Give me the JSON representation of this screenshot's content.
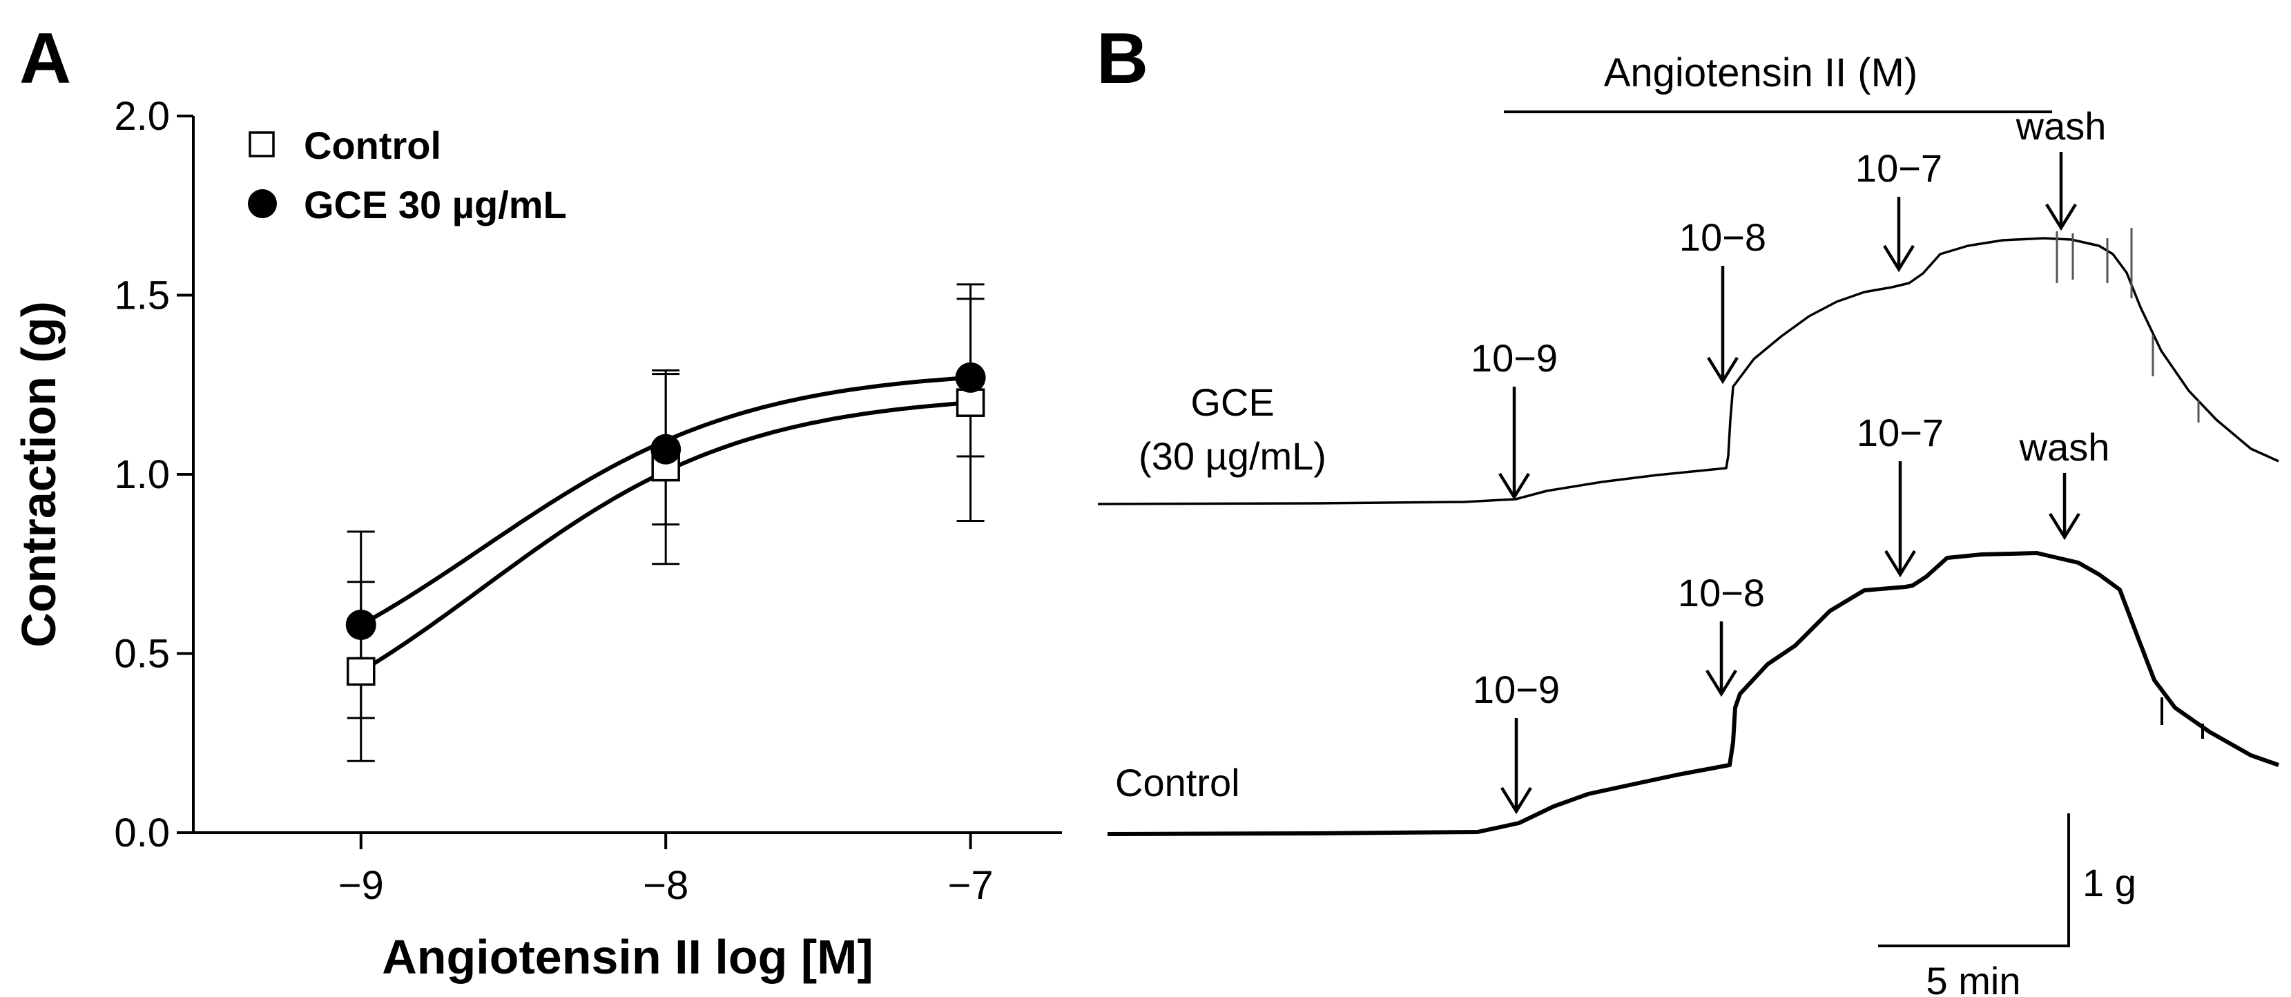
{
  "panels": {
    "a_label": "A",
    "b_label": "B"
  },
  "chart_data": [
    {
      "type": "scatter",
      "panel": "A",
      "xlabel": "Angiotensin II log [M]",
      "ylabel": "Contraction (g)",
      "xlim": [
        -9.55,
        -6.7
      ],
      "ylim": [
        0.0,
        2.0
      ],
      "xticks": [
        -9,
        -8,
        -7
      ],
      "xtick_labels": [
        "−9",
        "−8",
        "−7"
      ],
      "yticks": [
        0.0,
        0.5,
        1.0,
        1.5,
        2.0
      ],
      "ytick_labels": [
        "0.0",
        "0.5",
        "1.0",
        "1.5",
        "2.0"
      ],
      "legend_position": "top-left",
      "series": [
        {
          "name": "Control",
          "marker": "open-square",
          "x": [
            -9,
            -8,
            -7
          ],
          "values": [
            0.45,
            1.02,
            1.2
          ],
          "err_upper": [
            0.7,
            1.29,
            1.53
          ],
          "err_lower": [
            0.2,
            0.75,
            0.87
          ],
          "fit_top": 1.228
        },
        {
          "name": "GCE 30 µg/mL",
          "marker": "filled-circle",
          "x": [
            -9,
            -8,
            -7
          ],
          "values": [
            0.58,
            1.07,
            1.27
          ],
          "err_upper": [
            0.84,
            1.28,
            1.49
          ],
          "err_lower": [
            0.32,
            0.86,
            1.05
          ],
          "fit_top": 1.294
        }
      ]
    },
    {
      "type": "line",
      "panel": "B",
      "title": "Angiotensin II (M)",
      "traces": [
        {
          "name": "GCE",
          "label_line1": "GCE",
          "label_line2": "(30 µg/mL)",
          "events": [
            {
              "label": "10−9",
              "time_min": 0.0
            },
            {
              "label": "10−8",
              "time_min": 5.2
            },
            {
              "label": "10−7",
              "time_min": 9.3
            },
            {
              "label": "wash",
              "time_min": 13.1
            }
          ]
        },
        {
          "name": "Control",
          "label_line1": "Control",
          "events": [
            {
              "label": "10−9",
              "time_min": 0.0
            },
            {
              "label": "10−8",
              "time_min": 5.1
            },
            {
              "label": "10−7",
              "time_min": 9.2
            },
            {
              "label": "wash",
              "time_min": 13.0
            }
          ]
        }
      ],
      "scale_bar": {
        "x_label": "5 min",
        "y_label": "1 g"
      }
    }
  ]
}
